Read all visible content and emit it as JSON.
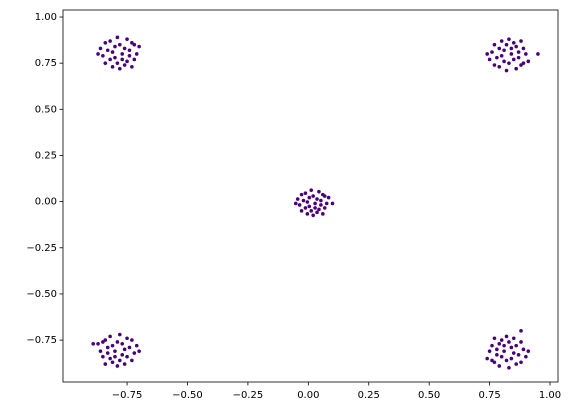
{
  "chart_data": {
    "type": "scatter",
    "color": "#4b0082",
    "grid": false,
    "xlim": [
      -1.015,
      1.033
    ],
    "ylim": [
      -0.977,
      1.038
    ],
    "xticks": [
      {
        "value": -0.75,
        "label": "−0.75"
      },
      {
        "value": -0.5,
        "label": "−0.50"
      },
      {
        "value": -0.25,
        "label": "−0.25"
      },
      {
        "value": 0,
        "label": "0.00"
      },
      0.25,
      {
        "value": 0.5,
        "label": "0.50"
      },
      0.75,
      {
        "value": 1,
        "label": "1.00"
      }
    ],
    "yticks": [
      {
        "value": -0.75,
        "label": "−0.75"
      },
      {
        "value": -0.5,
        "label": "−0.50"
      },
      {
        "value": -0.25,
        "label": "−0.25"
      },
      {
        "value": 0,
        "label": "0.00"
      },
      0.25,
      {
        "value": 0.5,
        "label": "0.50"
      },
      0.75,
      {
        "value": 1,
        "label": "1.00"
      }
    ],
    "x": [
      -0.86,
      -0.84,
      -0.82,
      -0.8,
      -0.78,
      -0.76,
      -0.74,
      -0.72,
      -0.7,
      -0.85,
      -0.83,
      -0.81,
      -0.79,
      -0.77,
      -0.75,
      -0.73,
      -0.71,
      -0.87,
      -0.82,
      -0.78,
      -0.75,
      -0.72,
      -0.84,
      -0.73,
      -0.8,
      -0.76,
      -0.81,
      -0.77,
      -0.74,
      -0.79,
      0.75,
      0.77,
      0.79,
      0.81,
      0.83,
      0.85,
      0.87,
      0.89,
      0.91,
      0.76,
      0.78,
      0.8,
      0.82,
      0.84,
      0.86,
      0.88,
      0.9,
      0.74,
      0.79,
      0.83,
      0.86,
      0.89,
      0.77,
      0.88,
      0.81,
      0.85,
      0.8,
      0.84,
      0.87,
      0.82,
      0.95,
      -0.044,
      -0.028,
      -0.012,
      0.004,
      0.02,
      0.036,
      0.052,
      0.068,
      0.084,
      -0.036,
      -0.02,
      -0.004,
      0.012,
      0.028,
      0.044,
      0.06,
      0.076,
      -0.052,
      -0.012,
      0.02,
      0.044,
      0.068,
      -0.028,
      0.06,
      0.004,
      0.036,
      -0.004,
      0.028,
      0.052,
      0.012,
      0.1,
      -0.71,
      -0.73,
      -0.75,
      -0.77,
      -0.79,
      -0.81,
      -0.83,
      -0.85,
      -0.87,
      -0.72,
      -0.74,
      -0.76,
      -0.78,
      -0.8,
      -0.82,
      -0.84,
      -0.86,
      -0.7,
      -0.75,
      -0.79,
      -0.82,
      -0.85,
      -0.73,
      -0.84,
      -0.77,
      -0.81,
      -0.76,
      -0.8,
      -0.83,
      -0.78,
      -0.89,
      0.9,
      0.88,
      0.86,
      0.84,
      0.82,
      0.8,
      0.78,
      0.76,
      0.74,
      0.89,
      0.87,
      0.85,
      0.83,
      0.81,
      0.79,
      0.77,
      0.75,
      0.91,
      0.86,
      0.82,
      0.79,
      0.76,
      0.88,
      0.77,
      0.84,
      0.8,
      0.85,
      0.81,
      0.78,
      0.83,
      0.88
    ],
    "y": [
      0.83,
      0.75,
      0.87,
      0.78,
      0.85,
      0.74,
      0.82,
      0.77,
      0.84,
      0.79,
      0.82,
      0.73,
      0.89,
      0.8,
      0.76,
      0.86,
      0.8,
      0.8,
      0.77,
      0.72,
      0.88,
      0.85,
      0.86,
      0.73,
      0.84,
      0.83,
      0.81,
      0.77,
      0.79,
      0.75,
      0.77,
      0.85,
      0.73,
      0.82,
      0.75,
      0.86,
      0.78,
      0.83,
      0.76,
      0.81,
      0.78,
      0.87,
      0.71,
      0.8,
      0.84,
      0.74,
      0.8,
      0.8,
      0.83,
      0.88,
      0.72,
      0.75,
      0.74,
      0.87,
      0.76,
      0.77,
      0.79,
      0.83,
      0.81,
      0.85,
      0.8,
      0.014,
      -0.05,
      0.046,
      -0.026,
      0.03,
      -0.058,
      0.006,
      -0.034,
      0.022,
      -0.018,
      0.006,
      -0.066,
      0.062,
      -0.01,
      -0.042,
      0.038,
      -0.01,
      -0.01,
      -0.034,
      -0.074,
      0.054,
      0.03,
      0.038,
      -0.066,
      0.022,
      0.014,
      -0.002,
      -0.034,
      -0.018,
      -0.05,
      -0.01,
      -0.78,
      -0.86,
      -0.74,
      -0.83,
      -0.76,
      -0.87,
      -0.79,
      -0.84,
      -0.77,
      -0.82,
      -0.79,
      -0.88,
      -0.72,
      -0.81,
      -0.85,
      -0.75,
      -0.81,
      -0.81,
      -0.84,
      -0.89,
      -0.73,
      -0.76,
      -0.75,
      -0.88,
      -0.77,
      -0.78,
      -0.8,
      -0.84,
      -0.82,
      -0.86,
      -0.77,
      -0.84,
      -0.76,
      -0.88,
      -0.79,
      -0.86,
      -0.75,
      -0.83,
      -0.78,
      -0.85,
      -0.8,
      -0.83,
      -0.74,
      -0.9,
      -0.81,
      -0.77,
      -0.87,
      -0.81,
      -0.81,
      -0.78,
      -0.73,
      -0.89,
      -0.86,
      -0.87,
      -0.74,
      -0.85,
      -0.84,
      -0.82,
      -0.78,
      -0.8,
      -0.76,
      -0.7
    ]
  }
}
